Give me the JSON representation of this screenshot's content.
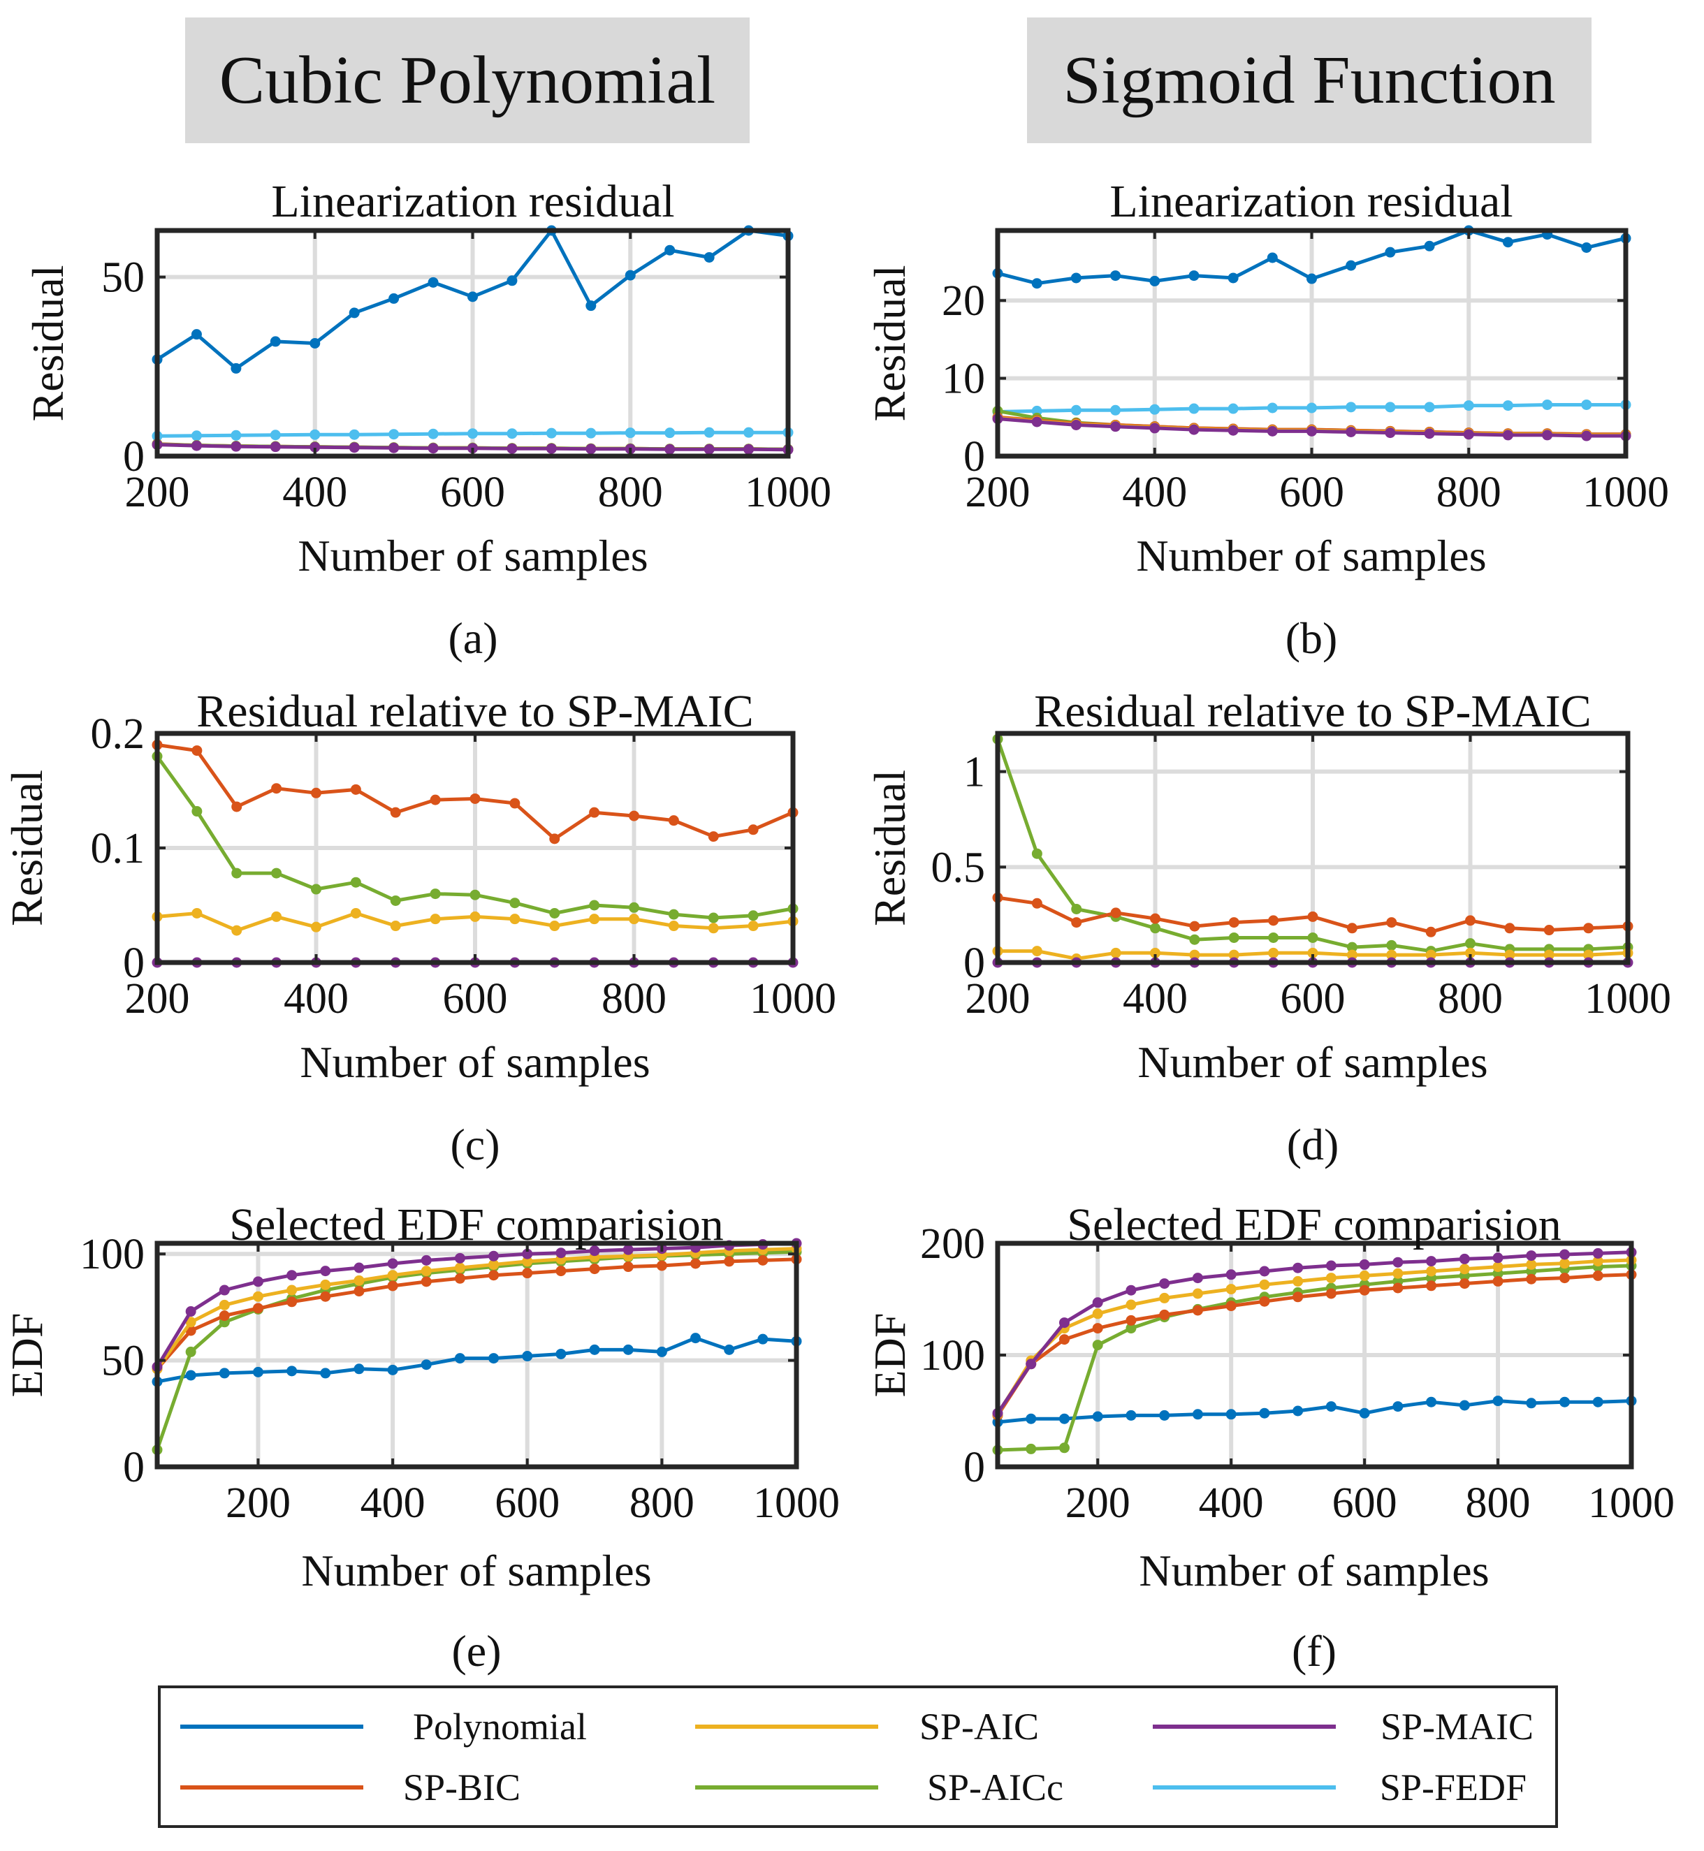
{
  "headers": {
    "left": "Cubic Polynomial",
    "right": "Sigmoid Function"
  },
  "colors": {
    "Polynomial": "#0072BD",
    "SP-BIC": "#D95319",
    "SP-AIC": "#EDB120",
    "SP-AICc": "#77AC30",
    "SP-MAIC": "#7E2F8E",
    "SP-FEDF": "#4DBEEE",
    "grid": "#dcdcdc",
    "header_bg": "#d9d9d9"
  },
  "legend": [
    {
      "name": "Polynomial",
      "label": "Polynomial"
    },
    {
      "name": "SP-AIC",
      "label": "SP-AIC"
    },
    {
      "name": "SP-MAIC",
      "label": "SP-MAIC"
    },
    {
      "name": "SP-BIC",
      "label": "SP-BIC"
    },
    {
      "name": "SP-AICc",
      "label": "SP-AICc"
    },
    {
      "name": "SP-FEDF",
      "label": "SP-FEDF"
    }
  ],
  "chart_data": [
    {
      "id": "a",
      "type": "line",
      "panel_label": "(a)",
      "title": "Linearization residual",
      "xlabel": "Number of samples",
      "ylabel": "Residual",
      "xlim": [
        200,
        1000
      ],
      "ylim": [
        0,
        63
      ],
      "xticks": [
        200,
        400,
        600,
        800,
        1000
      ],
      "yticks": [
        0,
        50
      ],
      "x": [
        200,
        250,
        300,
        350,
        400,
        450,
        500,
        550,
        600,
        650,
        700,
        750,
        800,
        850,
        900,
        950,
        1000
      ],
      "series": [
        {
          "name": "Polynomial",
          "values": [
            27,
            34,
            24.5,
            32,
            31.5,
            40,
            44,
            48.5,
            44.5,
            49,
            63,
            42,
            50.5,
            57.5,
            55.5,
            63,
            61.5
          ]
        },
        {
          "name": "SP-FEDF",
          "values": [
            5.6,
            5.7,
            5.8,
            5.9,
            6.0,
            6.0,
            6.1,
            6.2,
            6.3,
            6.3,
            6.4,
            6.4,
            6.5,
            6.5,
            6.6,
            6.6,
            6.6
          ]
        },
        {
          "name": "SP-BIC",
          "values": [
            3.4,
            3.0,
            2.8,
            2.7,
            2.6,
            2.5,
            2.4,
            2.3,
            2.3,
            2.2,
            2.2,
            2.1,
            2.1,
            2.0,
            2.0,
            2.0,
            1.9
          ]
        },
        {
          "name": "SP-AIC",
          "values": [
            3.3,
            3.0,
            2.8,
            2.7,
            2.6,
            2.5,
            2.4,
            2.3,
            2.3,
            2.2,
            2.2,
            2.1,
            2.1,
            2.0,
            2.0,
            2.0,
            1.9
          ]
        },
        {
          "name": "SP-AICc",
          "values": [
            3.3,
            3.0,
            2.8,
            2.7,
            2.6,
            2.5,
            2.4,
            2.3,
            2.3,
            2.2,
            2.2,
            2.1,
            2.1,
            2.0,
            2.0,
            2.0,
            1.9
          ]
        },
        {
          "name": "SP-MAIC",
          "values": [
            3.2,
            2.9,
            2.7,
            2.6,
            2.5,
            2.4,
            2.3,
            2.2,
            2.2,
            2.1,
            2.1,
            2.0,
            2.0,
            1.9,
            1.9,
            1.9,
            1.8
          ]
        }
      ]
    },
    {
      "id": "b",
      "type": "line",
      "panel_label": "(b)",
      "title": "Linearization residual",
      "xlabel": "Number of samples",
      "ylabel": "Residual",
      "xlim": [
        200,
        1000
      ],
      "ylim": [
        0,
        29
      ],
      "xticks": [
        200,
        400,
        600,
        800,
        1000
      ],
      "yticks": [
        0,
        10,
        20
      ],
      "x": [
        200,
        250,
        300,
        350,
        400,
        450,
        500,
        550,
        600,
        650,
        700,
        750,
        800,
        850,
        900,
        950,
        1000
      ],
      "series": [
        {
          "name": "Polynomial",
          "values": [
            23.5,
            22.2,
            22.9,
            23.2,
            22.5,
            23.2,
            22.9,
            25.5,
            22.8,
            24.5,
            26.2,
            27.0,
            29.0,
            27.5,
            28.5,
            26.8,
            28.0
          ]
        },
        {
          "name": "SP-FEDF",
          "values": [
            5.7,
            5.8,
            5.9,
            5.9,
            6.0,
            6.1,
            6.1,
            6.2,
            6.2,
            6.3,
            6.3,
            6.3,
            6.5,
            6.5,
            6.6,
            6.6,
            6.6
          ]
        },
        {
          "name": "SP-AICc",
          "values": [
            5.8,
            4.9,
            4.3,
            4.0,
            3.8,
            3.6,
            3.5,
            3.4,
            3.4,
            3.3,
            3.2,
            3.1,
            3.0,
            2.9,
            2.9,
            2.8,
            2.8
          ]
        },
        {
          "name": "SP-BIC",
          "values": [
            5.0,
            4.6,
            4.2,
            4.0,
            3.8,
            3.6,
            3.5,
            3.4,
            3.4,
            3.3,
            3.2,
            3.1,
            3.0,
            2.9,
            2.9,
            2.8,
            2.8
          ]
        },
        {
          "name": "SP-AIC",
          "values": [
            4.9,
            4.5,
            4.1,
            3.9,
            3.7,
            3.5,
            3.4,
            3.3,
            3.3,
            3.2,
            3.1,
            3.0,
            2.9,
            2.8,
            2.8,
            2.7,
            2.7
          ]
        },
        {
          "name": "SP-MAIC",
          "values": [
            4.8,
            4.4,
            4.0,
            3.8,
            3.6,
            3.4,
            3.3,
            3.2,
            3.2,
            3.1,
            3.0,
            2.9,
            2.8,
            2.7,
            2.7,
            2.6,
            2.6
          ]
        }
      ]
    },
    {
      "id": "c",
      "type": "line",
      "panel_label": "(c)",
      "title": "Residual relative to SP-MAIC",
      "xlabel": "Number of samples",
      "ylabel": "Residual",
      "xlim": [
        200,
        1000
      ],
      "ylim": [
        0,
        0.2
      ],
      "xticks": [
        200,
        400,
        600,
        800,
        1000
      ],
      "yticks": [
        0,
        0.1,
        0.2
      ],
      "ytick_labels": [
        "0",
        "0.1",
        "0.2"
      ],
      "x": [
        200,
        250,
        300,
        350,
        400,
        450,
        500,
        550,
        600,
        650,
        700,
        750,
        800,
        850,
        900,
        950,
        1000
      ],
      "series": [
        {
          "name": "SP-BIC",
          "values": [
            0.19,
            0.185,
            0.136,
            0.152,
            0.148,
            0.151,
            0.131,
            0.142,
            0.143,
            0.139,
            0.108,
            0.131,
            0.128,
            0.124,
            0.11,
            0.116,
            0.131
          ]
        },
        {
          "name": "SP-AICc",
          "values": [
            0.18,
            0.132,
            0.078,
            0.078,
            0.064,
            0.07,
            0.054,
            0.06,
            0.059,
            0.052,
            0.043,
            0.05,
            0.048,
            0.042,
            0.039,
            0.041,
            0.047
          ]
        },
        {
          "name": "SP-AIC",
          "values": [
            0.04,
            0.043,
            0.028,
            0.04,
            0.031,
            0.043,
            0.032,
            0.038,
            0.04,
            0.038,
            0.032,
            0.038,
            0.038,
            0.032,
            0.03,
            0.032,
            0.036
          ]
        },
        {
          "name": "SP-MAIC",
          "values": [
            0,
            0,
            0,
            0,
            0,
            0,
            0,
            0,
            0,
            0,
            0,
            0,
            0,
            0,
            0,
            0,
            0
          ]
        }
      ]
    },
    {
      "id": "d",
      "type": "line",
      "panel_label": "(d)",
      "title": "Residual relative to SP-MAIC",
      "xlabel": "Number of samples",
      "ylabel": "Residual",
      "xlim": [
        200,
        1000
      ],
      "ylim": [
        0,
        1.2
      ],
      "xticks": [
        200,
        400,
        600,
        800,
        1000
      ],
      "yticks": [
        0,
        0.5,
        1
      ],
      "ytick_labels": [
        "0",
        "0.5",
        "1"
      ],
      "x": [
        200,
        250,
        300,
        350,
        400,
        450,
        500,
        550,
        600,
        650,
        700,
        750,
        800,
        850,
        900,
        950,
        1000
      ],
      "series": [
        {
          "name": "SP-AICc",
          "values": [
            1.17,
            0.57,
            0.28,
            0.24,
            0.18,
            0.12,
            0.13,
            0.13,
            0.13,
            0.08,
            0.09,
            0.06,
            0.1,
            0.07,
            0.07,
            0.07,
            0.08
          ]
        },
        {
          "name": "SP-BIC",
          "values": [
            0.34,
            0.31,
            0.21,
            0.26,
            0.23,
            0.19,
            0.21,
            0.22,
            0.24,
            0.18,
            0.21,
            0.16,
            0.22,
            0.18,
            0.17,
            0.18,
            0.19
          ]
        },
        {
          "name": "SP-AIC",
          "values": [
            0.06,
            0.06,
            0.02,
            0.05,
            0.05,
            0.04,
            0.04,
            0.05,
            0.05,
            0.04,
            0.04,
            0.04,
            0.05,
            0.04,
            0.04,
            0.04,
            0.05
          ]
        },
        {
          "name": "SP-MAIC",
          "values": [
            0,
            0,
            0,
            0,
            0,
            0,
            0,
            0,
            0,
            0,
            0,
            0,
            0,
            0,
            0,
            0,
            0
          ]
        }
      ]
    },
    {
      "id": "e",
      "type": "line",
      "panel_label": "(e)",
      "title": "Selected EDF comparision",
      "xlabel": "Number of samples",
      "ylabel": "EDF",
      "xlim": [
        50,
        1000
      ],
      "ylim": [
        0,
        105
      ],
      "xticks": [
        200,
        400,
        600,
        800,
        1000
      ],
      "yticks": [
        0,
        50,
        100
      ],
      "x": [
        50,
        100,
        150,
        200,
        250,
        300,
        350,
        400,
        450,
        500,
        550,
        600,
        650,
        700,
        750,
        800,
        850,
        900,
        950,
        1000
      ],
      "series": [
        {
          "name": "Polynomial",
          "values": [
            40,
            43,
            44,
            44.5,
            45,
            44,
            46,
            45.5,
            48,
            51,
            51,
            52,
            53,
            55,
            55,
            54,
            60.5,
            55,
            60,
            59
          ]
        },
        {
          "name": "SP-AICc",
          "values": [
            8,
            54,
            68,
            74,
            79,
            83,
            86,
            89,
            91,
            92.5,
            94,
            95.5,
            96.5,
            97.5,
            98.5,
            99,
            99.5,
            100,
            100.5,
            101
          ]
        },
        {
          "name": "SP-BIC",
          "values": [
            46,
            64,
            71,
            74.5,
            77.5,
            80,
            82.5,
            85,
            87,
            88.5,
            90,
            91,
            92,
            93,
            94,
            94.5,
            95.5,
            96.5,
            97,
            97.5
          ]
        },
        {
          "name": "SP-AIC",
          "values": [
            46,
            68,
            76,
            80,
            83,
            85.5,
            87.5,
            90,
            92,
            93.5,
            95,
            96.5,
            97.5,
            98.5,
            99,
            99.5,
            100.5,
            101.5,
            102,
            102.5
          ]
        },
        {
          "name": "SP-MAIC",
          "values": [
            47,
            73,
            83,
            87,
            90,
            92,
            93.5,
            95.5,
            97,
            98,
            99,
            100,
            100.5,
            101.5,
            102,
            102.5,
            103,
            104,
            104.5,
            105
          ]
        }
      ]
    },
    {
      "id": "f",
      "type": "line",
      "panel_label": "(f)",
      "title": "Selected EDF comparision",
      "xlabel": "Number of samples",
      "ylabel": "EDF",
      "xlim": [
        50,
        1000
      ],
      "ylim": [
        0,
        200
      ],
      "xticks": [
        200,
        400,
        600,
        800,
        1000
      ],
      "yticks": [
        0,
        100,
        200
      ],
      "x": [
        50,
        100,
        150,
        200,
        250,
        300,
        350,
        400,
        450,
        500,
        550,
        600,
        650,
        700,
        750,
        800,
        850,
        900,
        950,
        1000
      ],
      "series": [
        {
          "name": "Polynomial",
          "values": [
            40,
            43,
            43,
            45,
            46,
            46,
            47,
            47,
            48,
            50,
            54,
            48,
            54,
            58,
            55,
            59,
            57,
            58,
            58,
            59
          ]
        },
        {
          "name": "SP-AICc",
          "values": [
            15,
            16,
            17,
            109,
            124,
            134,
            141,
            147,
            152,
            156,
            160,
            163,
            166,
            169,
            171,
            173,
            175,
            177,
            179,
            180
          ]
        },
        {
          "name": "SP-BIC",
          "values": [
            46,
            92,
            114,
            124,
            131,
            136,
            140,
            144,
            148,
            152,
            155,
            158,
            160,
            162,
            164,
            166,
            168,
            169,
            171,
            172
          ]
        },
        {
          "name": "SP-AIC",
          "values": [
            47,
            95,
            124,
            137,
            145,
            151,
            155,
            159,
            163,
            166,
            169,
            171,
            173,
            175,
            177,
            179,
            181,
            182,
            184,
            185
          ]
        },
        {
          "name": "SP-MAIC",
          "values": [
            48,
            92,
            129,
            147,
            158,
            164,
            169,
            172,
            175,
            178,
            180,
            181,
            183,
            184,
            186,
            187,
            189,
            190,
            191,
            192
          ]
        }
      ]
    }
  ]
}
